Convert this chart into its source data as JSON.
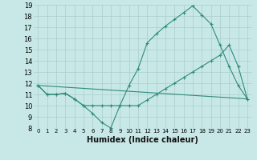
{
  "line1_x": [
    0,
    1,
    2,
    3,
    4,
    5,
    6,
    7,
    8,
    9,
    10,
    11,
    12,
    13,
    14,
    15,
    16,
    17,
    18,
    19,
    20,
    21,
    22,
    23
  ],
  "line1_y": [
    11.8,
    11.0,
    11.0,
    11.1,
    10.6,
    10.0,
    9.3,
    8.5,
    8.0,
    10.0,
    11.8,
    13.3,
    15.6,
    16.4,
    17.1,
    17.7,
    18.3,
    18.9,
    18.1,
    17.3,
    15.4,
    13.5,
    11.8,
    10.6
  ],
  "line2_x": [
    0,
    1,
    2,
    3,
    4,
    5,
    6,
    7,
    8,
    9,
    10,
    11,
    12,
    13,
    14,
    15,
    16,
    17,
    18,
    19,
    20,
    21,
    22,
    23
  ],
  "line2_y": [
    11.8,
    11.0,
    11.0,
    11.1,
    10.6,
    10.0,
    10.0,
    10.0,
    10.0,
    10.0,
    10.0,
    10.0,
    10.5,
    11.0,
    11.5,
    12.0,
    12.5,
    13.0,
    13.5,
    14.0,
    14.5,
    15.4,
    13.5,
    10.6
  ],
  "line3_x": [
    0,
    23
  ],
  "line3_y": [
    11.8,
    10.6
  ],
  "color": "#2e8b7a",
  "bg_color": "#c8e8e8",
  "grid_color": "#aacccc",
  "xlabel": "Humidex (Indice chaleur)",
  "xlim": [
    -0.5,
    23.5
  ],
  "ylim": [
    8,
    19
  ],
  "yticks": [
    8,
    9,
    10,
    11,
    12,
    13,
    14,
    15,
    16,
    17,
    18,
    19
  ],
  "xticks": [
    0,
    1,
    2,
    3,
    4,
    5,
    6,
    7,
    8,
    9,
    10,
    11,
    12,
    13,
    14,
    15,
    16,
    17,
    18,
    19,
    20,
    21,
    22,
    23
  ]
}
